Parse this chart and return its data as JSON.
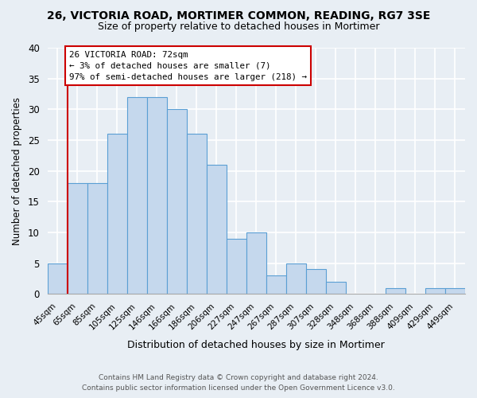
{
  "title": "26, VICTORIA ROAD, MORTIMER COMMON, READING, RG7 3SE",
  "subtitle": "Size of property relative to detached houses in Mortimer",
  "xlabel": "Distribution of detached houses by size in Mortimer",
  "ylabel": "Number of detached properties",
  "bar_labels": [
    "45sqm",
    "65sqm",
    "85sqm",
    "105sqm",
    "125sqm",
    "146sqm",
    "166sqm",
    "186sqm",
    "206sqm",
    "227sqm",
    "247sqm",
    "267sqm",
    "287sqm",
    "307sqm",
    "328sqm",
    "348sqm",
    "368sqm",
    "388sqm",
    "409sqm",
    "429sqm",
    "449sqm"
  ],
  "bar_values": [
    5,
    18,
    18,
    26,
    32,
    32,
    30,
    26,
    21,
    9,
    10,
    3,
    5,
    4,
    2,
    0,
    0,
    1,
    0,
    1,
    1
  ],
  "bar_color": "#c5d8ed",
  "bar_edge_color": "#5a9fd4",
  "ylim": [
    0,
    40
  ],
  "yticks": [
    0,
    5,
    10,
    15,
    20,
    25,
    30,
    35,
    40
  ],
  "property_line_label": "26 VICTORIA ROAD: 72sqm",
  "annotation_line1": "← 3% of detached houses are smaller (7)",
  "annotation_line2": "97% of semi-detached houses are larger (218) →",
  "annotation_box_color": "#ffffff",
  "annotation_box_edge_color": "#cc0000",
  "property_line_color": "#cc0000",
  "footnote1": "Contains HM Land Registry data © Crown copyright and database right 2024.",
  "footnote2": "Contains public sector information licensed under the Open Government Licence v3.0.",
  "background_color": "#e8eef4",
  "plot_background_color": "#e8eef4",
  "grid_color": "#ffffff",
  "spine_color": "#aaaaaa"
}
